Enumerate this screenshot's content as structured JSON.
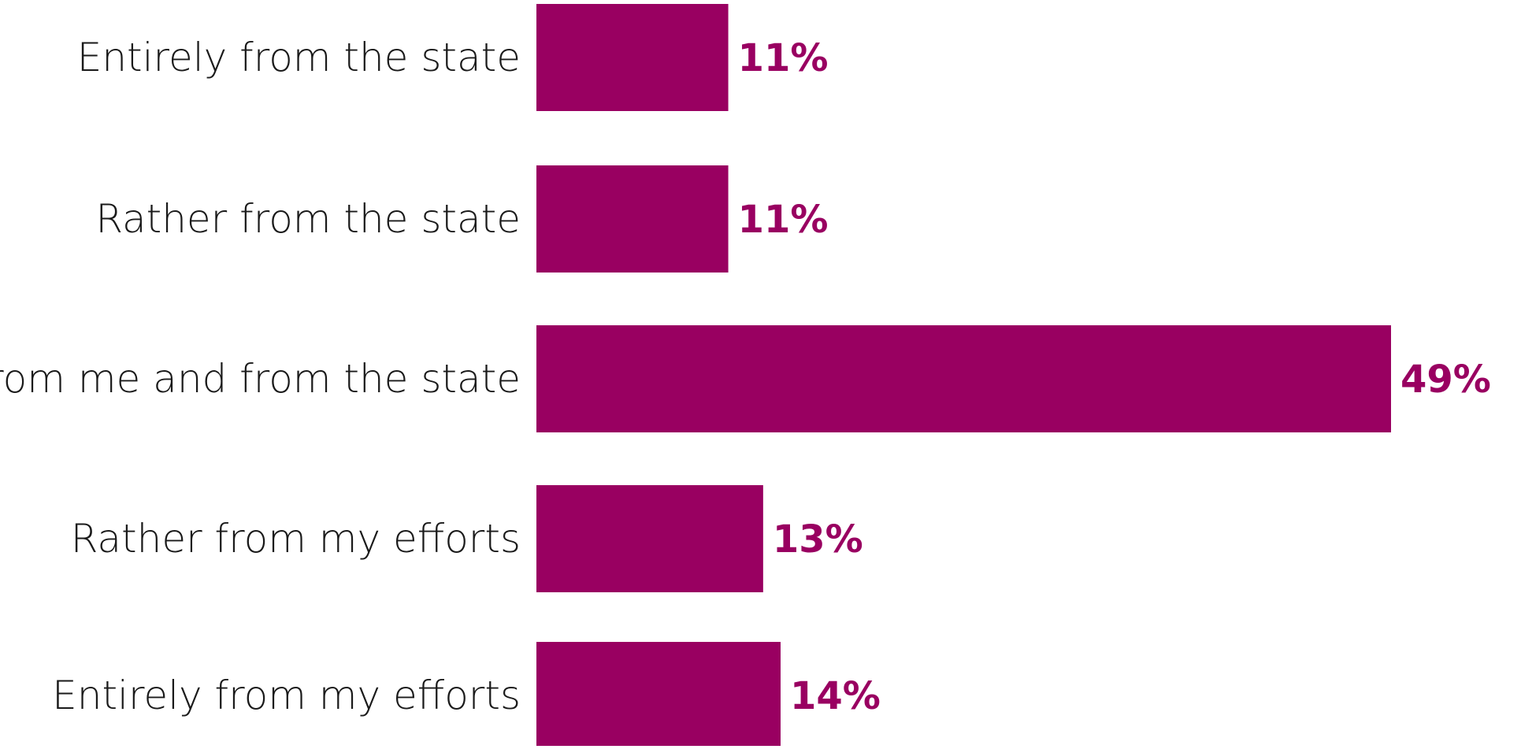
{
  "chart_data": {
    "type": "bar",
    "orientation": "horizontal",
    "categories": [
      "Entirely from the state",
      "Rather from the state",
      "From me and from the state",
      "Rather from my efforts",
      "Entirely from my efforts"
    ],
    "values": [
      11,
      11,
      49,
      13,
      14
    ],
    "value_labels": [
      "11%",
      "11%",
      "49%",
      "13%",
      "14%"
    ],
    "unit": "%",
    "xlim": [
      0,
      49
    ],
    "grid": false,
    "bar_color": "#990061",
    "label_color": "#990061",
    "category_text_color": "#1a1a1a"
  }
}
